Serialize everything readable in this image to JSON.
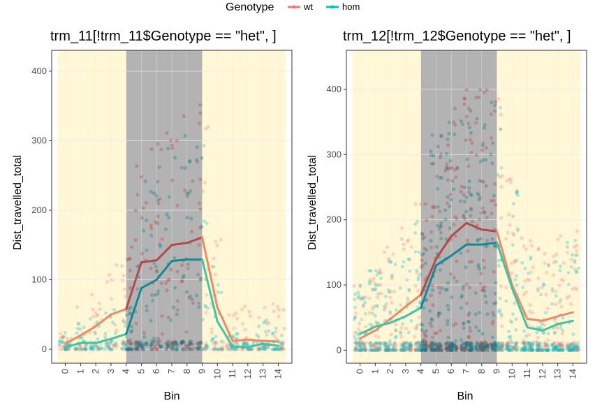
{
  "legend": {
    "title": "Genotype",
    "items": [
      {
        "label": "wt",
        "color": "#F8766D"
      },
      {
        "label": "hom",
        "color": "#00BFC4"
      }
    ]
  },
  "colors": {
    "light_band": "#FFF7D6",
    "dark_band": "#B3B3B3",
    "wt_line": "#B5494A",
    "hom_line": "#128A93",
    "wt_line_light": "#F08A66",
    "hom_line_light": "#3FC4A6"
  },
  "chart_data": [
    {
      "type": "line",
      "title": "trm_11[!trm_11$Genotype == \"het\", ]",
      "xlabel": "Bin",
      "ylabel": "Dist_travelled_total",
      "x": [
        0,
        1,
        2,
        3,
        4,
        5,
        6,
        7,
        8,
        9,
        10,
        11,
        12,
        13,
        14
      ],
      "xlim": [
        -0.9,
        14.9
      ],
      "ylim": [
        -20,
        430
      ],
      "yticks": [
        0,
        100,
        200,
        300,
        400
      ],
      "dark_bins": [
        4,
        9
      ],
      "light_bins": [
        [
          -0.5,
          4
        ],
        [
          9,
          14.5
        ]
      ],
      "series": [
        {
          "name": "wt",
          "values": [
            8,
            20,
            33,
            50,
            58,
            125,
            128,
            150,
            153,
            161,
            60,
            12,
            14,
            12,
            11
          ]
        },
        {
          "name": "hom",
          "values": [
            3,
            9,
            9,
            15,
            22,
            88,
            100,
            127,
            129,
            129,
            40,
            4,
            3,
            8,
            5
          ]
        }
      ],
      "scatter_spread": [
        {
          "wt": 30,
          "hom": 30
        },
        {
          "wt": 60,
          "hom": 50
        },
        {
          "wt": 80,
          "hom": 60
        },
        {
          "wt": 110,
          "hom": 70
        },
        {
          "wt": 130,
          "hom": 80
        },
        {
          "wt": 250,
          "hom": 240
        },
        {
          "wt": 260,
          "hom": 250
        },
        {
          "wt": 270,
          "hom": 260
        },
        {
          "wt": 270,
          "hom": 260
        },
        {
          "wt": 280,
          "hom": 260
        },
        {
          "wt": 150,
          "hom": 130
        },
        {
          "wt": 60,
          "hom": 30
        },
        {
          "wt": 70,
          "hom": 20
        },
        {
          "wt": 70,
          "hom": 50
        },
        {
          "wt": 80,
          "hom": 40
        }
      ]
    },
    {
      "type": "line",
      "title": "trm_12[!trm_12$Genotype == \"het\", ]",
      "xlabel": "Bin",
      "ylabel": "Dist_travelled_total",
      "x": [
        0,
        1,
        2,
        3,
        4,
        5,
        6,
        7,
        8,
        9,
        10,
        11,
        12,
        13,
        14
      ],
      "xlim": [
        -0.9,
        14.9
      ],
      "ylim": [
        -20,
        460
      ],
      "yticks": [
        0,
        100,
        200,
        300,
        400
      ],
      "dark_bins": [
        4,
        9
      ],
      "light_bins": [
        [
          -0.5,
          4
        ],
        [
          9,
          14.5
        ]
      ],
      "series": [
        {
          "name": "wt",
          "values": [
            18,
            30,
            48,
            67,
            85,
            140,
            175,
            195,
            185,
            182,
            100,
            48,
            45,
            52,
            58
          ]
        },
        {
          "name": "hom",
          "values": [
            25,
            36,
            42,
            52,
            65,
            130,
            145,
            162,
            162,
            165,
            95,
            35,
            30,
            40,
            45
          ]
        }
      ],
      "scatter_spread": [
        {
          "wt": 120,
          "hom": 110
        },
        {
          "wt": 140,
          "hom": 130
        },
        {
          "wt": 160,
          "hom": 150
        },
        {
          "wt": 180,
          "hom": 170
        },
        {
          "wt": 200,
          "hom": 190
        },
        {
          "wt": 300,
          "hom": 290
        },
        {
          "wt": 320,
          "hom": 300
        },
        {
          "wt": 340,
          "hom": 320
        },
        {
          "wt": 330,
          "hom": 320
        },
        {
          "wt": 330,
          "hom": 310
        },
        {
          "wt": 250,
          "hom": 240
        },
        {
          "wt": 180,
          "hom": 170
        },
        {
          "wt": 170,
          "hom": 160
        },
        {
          "wt": 180,
          "hom": 170
        },
        {
          "wt": 190,
          "hom": 180
        }
      ]
    }
  ]
}
